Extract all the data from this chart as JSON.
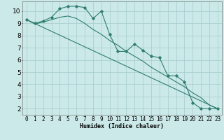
{
  "background_color": "#cce9e9",
  "grid_color": "#aacfcf",
  "line_color": "#2e7d6e",
  "xlabel": "Humidex (Indice chaleur)",
  "xlabel_fontsize": 6,
  "ytick_fontsize": 6.5,
  "xtick_fontsize": 5.5,
  "xlim": [
    -0.5,
    23.5
  ],
  "ylim": [
    1.5,
    10.8
  ],
  "yticks": [
    2,
    3,
    4,
    5,
    6,
    7,
    8,
    9,
    10
  ],
  "xticks": [
    0,
    1,
    2,
    3,
    4,
    5,
    6,
    7,
    8,
    9,
    10,
    11,
    12,
    13,
    14,
    15,
    16,
    17,
    18,
    19,
    20,
    21,
    22,
    23
  ],
  "line1_x": [
    0,
    1,
    2,
    3,
    4,
    5,
    6,
    7,
    8,
    9,
    10,
    11,
    12,
    13,
    14,
    15,
    16,
    17,
    18,
    19,
    20,
    21,
    22,
    23
  ],
  "line1_y": [
    9.3,
    9.0,
    9.2,
    9.5,
    10.2,
    10.4,
    10.4,
    10.3,
    9.4,
    10.0,
    8.1,
    6.7,
    6.7,
    7.3,
    6.8,
    6.3,
    6.2,
    4.7,
    4.7,
    4.2,
    2.5,
    2.0,
    2.0,
    2.0
  ],
  "line2_x": [
    0,
    1,
    2,
    3,
    4,
    5,
    6,
    7,
    8,
    9,
    10,
    11,
    12,
    13,
    14,
    15,
    16,
    17,
    18,
    19,
    20,
    21,
    22,
    23
  ],
  "line2_y": [
    9.3,
    8.95,
    9.1,
    9.3,
    9.5,
    9.6,
    9.4,
    9.0,
    8.5,
    8.1,
    7.6,
    7.2,
    6.7,
    6.3,
    5.9,
    5.4,
    5.0,
    4.6,
    4.2,
    3.8,
    3.3,
    2.9,
    2.3,
    2.0
  ],
  "line3_x": [
    0,
    23
  ],
  "line3_y": [
    9.3,
    2.0
  ]
}
